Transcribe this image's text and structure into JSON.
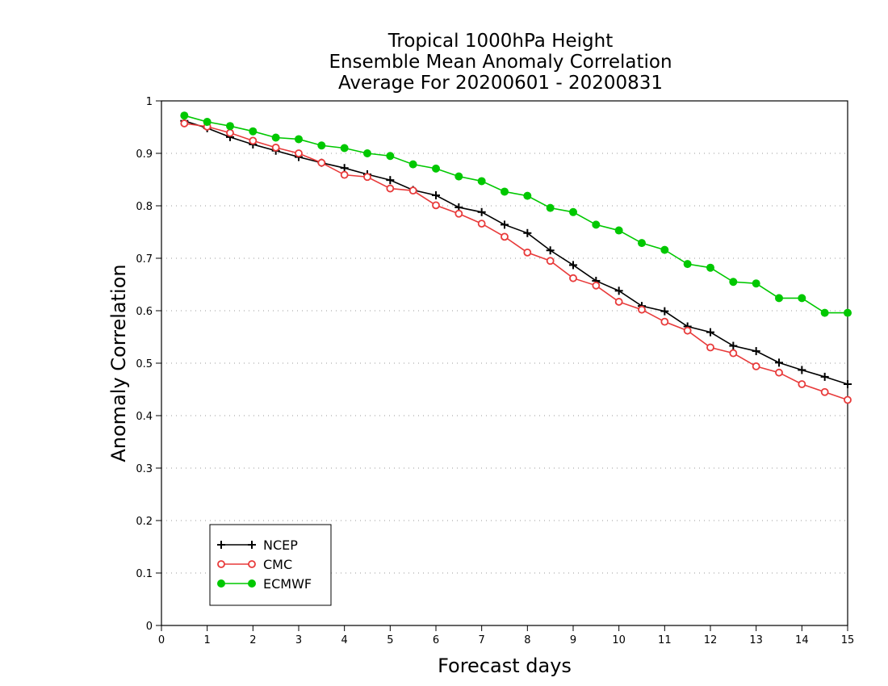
{
  "chart_data": {
    "type": "line",
    "title": [
      "Tropical 1000hPa Height",
      "Ensemble Mean Anomaly Correlation",
      "Average For 20200601 - 20200831"
    ],
    "xlabel": "Forecast days",
    "ylabel": "Anomaly Correlation",
    "xlim": [
      0,
      15
    ],
    "ylim": [
      0,
      1
    ],
    "xticks": [
      "0",
      "1",
      "2",
      "3",
      "4",
      "5",
      "6",
      "7",
      "8",
      "9",
      "10",
      "11",
      "12",
      "13",
      "14",
      "15"
    ],
    "yticks": [
      "0",
      "0.1",
      "0.2",
      "0.3",
      "0.4",
      "0.5",
      "0.6",
      "0.7",
      "0.8",
      "0.9",
      "1"
    ],
    "grid": "horizontal dotted",
    "legend_position": "bottom-left",
    "x": [
      0.5,
      1,
      1.5,
      2,
      2.5,
      3,
      3.5,
      4,
      4.5,
      5,
      5.5,
      6,
      6.5,
      7,
      7.5,
      8,
      8.5,
      9,
      9.5,
      10,
      10.5,
      11,
      11.5,
      12,
      12.5,
      13,
      13.5,
      14,
      14.5,
      15
    ],
    "series": [
      {
        "name": "NCEP",
        "color": "#000000",
        "marker": "plus",
        "values": [
          0.962,
          0.948,
          0.931,
          0.917,
          0.905,
          0.893,
          0.882,
          0.872,
          0.86,
          0.849,
          0.83,
          0.82,
          0.797,
          0.788,
          0.764,
          0.748,
          0.715,
          0.687,
          0.657,
          0.638,
          0.609,
          0.599,
          0.57,
          0.559,
          0.533,
          0.523,
          0.501,
          0.487,
          0.474,
          0.46
        ]
      },
      {
        "name": "CMC",
        "color": "#e83a3a",
        "marker": "open-circle",
        "values": [
          0.957,
          0.951,
          0.939,
          0.924,
          0.911,
          0.9,
          0.882,
          0.859,
          0.855,
          0.833,
          0.829,
          0.801,
          0.785,
          0.766,
          0.741,
          0.711,
          0.695,
          0.662,
          0.648,
          0.617,
          0.602,
          0.579,
          0.562,
          0.53,
          0.519,
          0.494,
          0.482,
          0.46,
          0.445,
          0.43
        ]
      },
      {
        "name": "ECMWF",
        "color": "#00c800",
        "marker": "filled-circle",
        "values": [
          0.972,
          0.96,
          0.952,
          0.942,
          0.93,
          0.927,
          0.915,
          0.91,
          0.9,
          0.895,
          0.879,
          0.871,
          0.856,
          0.847,
          0.827,
          0.819,
          0.796,
          0.788,
          0.764,
          0.753,
          0.729,
          0.716,
          0.689,
          0.682,
          0.655,
          0.652,
          0.624,
          0.624,
          0.596,
          0.596
        ]
      }
    ]
  }
}
